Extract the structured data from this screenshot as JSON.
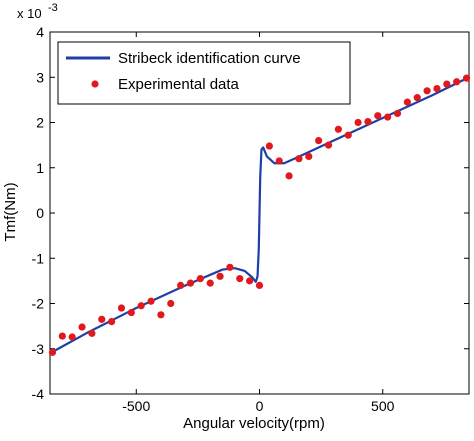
{
  "chart_data": {
    "type": "line",
    "xlabel": "Angular velocity(rpm)",
    "ylabel": "Tmf(Nm)",
    "y_multiplier_base": "x 10",
    "y_multiplier_exp": "-3",
    "xlim": [
      -850,
      850
    ],
    "ylim": [
      -4,
      4
    ],
    "xticks": [
      -500,
      0,
      500
    ],
    "xtick_labels": [
      "-500",
      "0",
      "500"
    ],
    "yticks": [
      -4,
      -3,
      -2,
      -1,
      0,
      1,
      2,
      3,
      4
    ],
    "ytick_labels": [
      "-4",
      "-3",
      "-2",
      "-1",
      "0",
      "1",
      "2",
      "3",
      "4"
    ],
    "grid": false,
    "legend_position": "top-left",
    "colors": {
      "curve": "#1f3fa8",
      "points": "#e0191f"
    },
    "series": [
      {
        "name": "Stribeck identification curve",
        "kind": "line",
        "x": [
          -850,
          -700,
          -500,
          -300,
          -150,
          -100,
          -60,
          -30,
          -15,
          -8,
          -3,
          0,
          3,
          8,
          15,
          30,
          60,
          100,
          150,
          300,
          500,
          700,
          850
        ],
        "y": [
          -3.1,
          -2.65,
          -2.1,
          -1.6,
          -1.25,
          -1.22,
          -1.28,
          -1.42,
          -1.52,
          -1.4,
          -0.8,
          0.0,
          0.8,
          1.4,
          1.45,
          1.25,
          1.1,
          1.1,
          1.22,
          1.6,
          2.1,
          2.6,
          3.0
        ]
      },
      {
        "name": "Experimental data",
        "kind": "scatter",
        "x": [
          -840,
          -800,
          -760,
          -720,
          -680,
          -640,
          -600,
          -560,
          -520,
          -480,
          -440,
          -400,
          -360,
          -320,
          -280,
          -240,
          -200,
          -160,
          -120,
          -80,
          -40,
          0,
          40,
          80,
          120,
          160,
          200,
          240,
          280,
          320,
          360,
          400,
          440,
          480,
          520,
          560,
          600,
          640,
          680,
          720,
          760,
          800,
          840
        ],
        "y": [
          -3.08,
          -2.72,
          -2.74,
          -2.52,
          -2.66,
          -2.35,
          -2.4,
          -2.1,
          -2.2,
          -2.05,
          -1.95,
          -2.25,
          -2.0,
          -1.6,
          -1.55,
          -1.45,
          -1.55,
          -1.4,
          -1.2,
          -1.45,
          -1.5,
          -1.6,
          1.48,
          1.15,
          0.82,
          1.2,
          1.25,
          1.6,
          1.5,
          1.85,
          1.72,
          2.0,
          2.02,
          2.15,
          2.12,
          2.2,
          2.45,
          2.55,
          2.7,
          2.75,
          2.85,
          2.9,
          2.98
        ]
      }
    ]
  }
}
